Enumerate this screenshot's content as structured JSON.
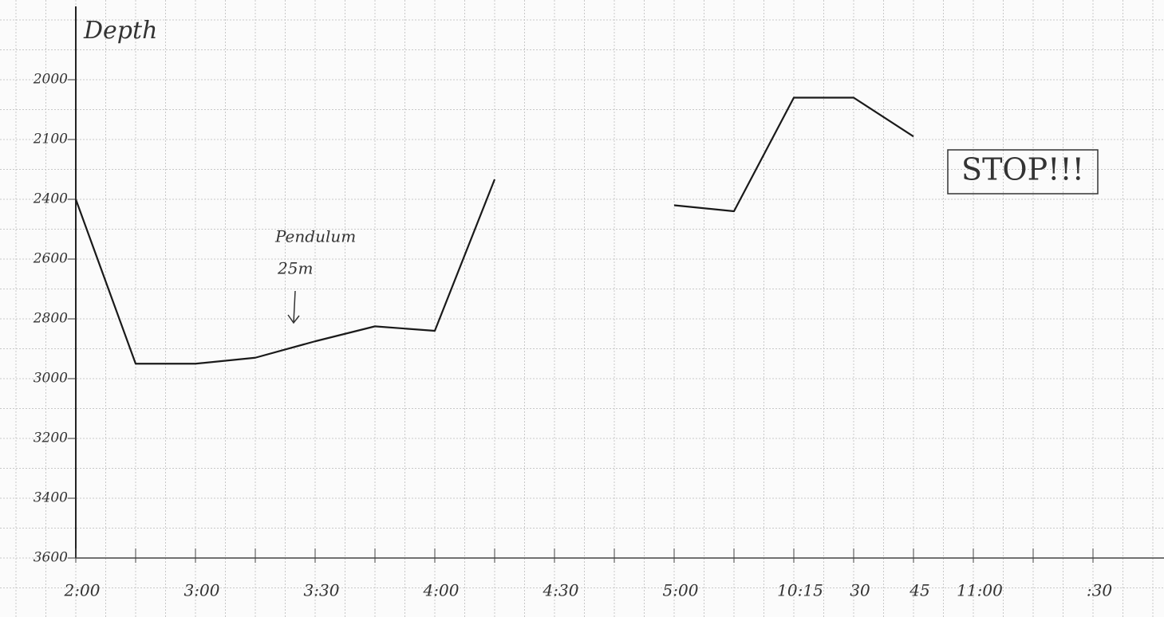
{
  "chart_data": {
    "type": "line",
    "y_label": "Depth",
    "categories": [
      "2:00",
      null,
      "3:00",
      null,
      "3:30",
      null,
      "4:00",
      null,
      "4:30",
      null,
      "5:00",
      null,
      "10:15",
      "30",
      "45",
      "11:00",
      null,
      ":30"
    ],
    "series": [
      {
        "color": "#1a1a1a",
        "values": [
          2400,
          2950,
          2950,
          2930,
          2875,
          2825,
          2840,
          2300,
          null,
          null,
          2420,
          2440,
          2030,
          2030,
          2095,
          null,
          null,
          null
        ]
      }
    ],
    "ylim": [
      2000,
      3600
    ],
    "yticks": [
      2000,
      2100,
      2400,
      2600,
      2800,
      3000,
      3200,
      3400,
      3600
    ],
    "inverted_y": true,
    "grid": true,
    "annotations": [
      "Pendulum",
      "25m",
      "STOP!!!"
    ]
  }
}
